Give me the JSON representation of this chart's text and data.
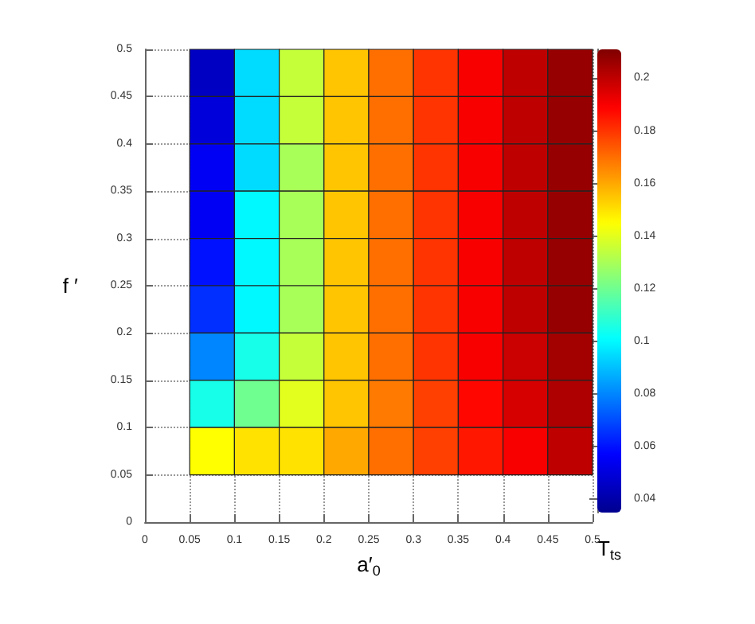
{
  "chart_data": {
    "type": "heatmap",
    "xlabel": "a′$_{0}$",
    "ylabel": "f ′",
    "clabel": "T$_{ts}$",
    "x": [
      0.075,
      0.125,
      0.175,
      0.225,
      0.275,
      0.325,
      0.375,
      0.425,
      0.475
    ],
    "y": [
      0.475,
      0.425,
      0.375,
      0.325,
      0.275,
      0.225,
      0.175,
      0.125,
      0.075
    ],
    "cells": [
      [
        0.045,
        0.095,
        0.135,
        0.155,
        0.17,
        0.18,
        0.19,
        0.2,
        0.207
      ],
      [
        0.05,
        0.095,
        0.135,
        0.155,
        0.17,
        0.18,
        0.19,
        0.2,
        0.207
      ],
      [
        0.055,
        0.095,
        0.13,
        0.155,
        0.17,
        0.18,
        0.19,
        0.2,
        0.207
      ],
      [
        0.055,
        0.1,
        0.13,
        0.155,
        0.17,
        0.18,
        0.19,
        0.2,
        0.207
      ],
      [
        0.06,
        0.1,
        0.13,
        0.155,
        0.17,
        0.18,
        0.19,
        0.2,
        0.207
      ],
      [
        0.065,
        0.1,
        0.13,
        0.155,
        0.17,
        0.18,
        0.19,
        0.2,
        0.207
      ],
      [
        0.08,
        0.105,
        0.135,
        0.155,
        0.17,
        0.18,
        0.19,
        0.198,
        0.205
      ],
      [
        0.105,
        0.12,
        0.14,
        0.155,
        0.168,
        0.178,
        0.188,
        0.196,
        0.203
      ],
      [
        0.145,
        0.15,
        0.15,
        0.16,
        0.17,
        0.178,
        0.185,
        0.19,
        0.2
      ]
    ],
    "xlim": [
      0,
      0.5
    ],
    "xticks": [
      0,
      0.05,
      0.1,
      0.15,
      0.2,
      0.25,
      0.3,
      0.35,
      0.4,
      0.45,
      0.5
    ],
    "ylim": [
      0,
      0.5
    ],
    "yticks": [
      0,
      0.05,
      0.1,
      0.15,
      0.2,
      0.25,
      0.3,
      0.35,
      0.4,
      0.45,
      0.5
    ],
    "clim": [
      0.035,
      0.211
    ],
    "cticks": [
      0.04,
      0.06,
      0.08,
      0.1,
      0.12,
      0.14,
      0.16,
      0.18,
      0.2
    ],
    "grid": true
  }
}
